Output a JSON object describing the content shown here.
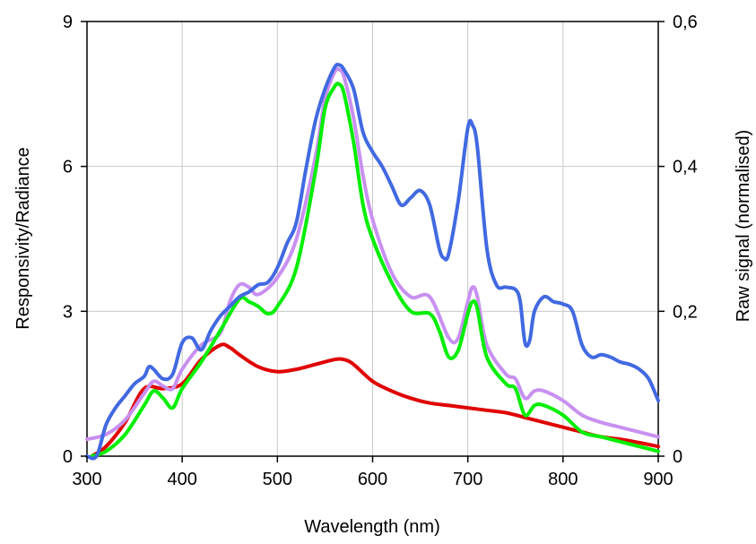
{
  "chart_data": {
    "type": "line",
    "title": "",
    "xlabel": "Wavelength (nm)",
    "ylabel": "Responsivity/Radiance",
    "y2label": "Raw signal (normalised)",
    "xlim": [
      300,
      900
    ],
    "ylim": [
      0,
      9
    ],
    "y2lim": [
      0,
      0.6
    ],
    "x_ticks": [
      300,
      400,
      500,
      600,
      700,
      800,
      900
    ],
    "x_tick_labels": [
      "300",
      "400",
      "500",
      "600",
      "700",
      "800",
      "900"
    ],
    "y_ticks": [
      0,
      3,
      6,
      9
    ],
    "y_tick_labels": [
      "0",
      "3",
      "6",
      "9"
    ],
    "y2_ticks": [
      0,
      0.2,
      0.4,
      0.6
    ],
    "y2_tick_labels": [
      "0",
      "0,2",
      "0,4",
      "0,6"
    ],
    "grid": true,
    "legend": "none",
    "series": [
      {
        "color": "#e00000",
        "x": [
          305,
          320,
          340,
          360,
          380,
          400,
          420,
          440,
          450,
          460,
          480,
          500,
          520,
          540,
          560,
          570,
          580,
          600,
          620,
          640,
          660,
          680,
          700,
          720,
          740,
          760,
          780,
          800,
          820,
          840,
          860,
          880,
          900
        ],
        "y": [
          0.0,
          0.2,
          0.7,
          1.4,
          1.4,
          1.5,
          2.0,
          2.3,
          2.25,
          2.1,
          1.85,
          1.75,
          1.8,
          1.9,
          2.0,
          2.0,
          1.9,
          1.55,
          1.35,
          1.2,
          1.1,
          1.05,
          1.0,
          0.95,
          0.9,
          0.8,
          0.7,
          0.6,
          0.5,
          0.4,
          0.35,
          0.28,
          0.2
        ]
      },
      {
        "color": "#c890f0",
        "x": [
          300,
          320,
          340,
          360,
          370,
          380,
          390,
          400,
          420,
          440,
          450,
          460,
          470,
          480,
          500,
          520,
          540,
          550,
          560,
          565,
          570,
          580,
          590,
          600,
          620,
          640,
          660,
          680,
          690,
          700,
          705,
          710,
          720,
          740,
          750,
          760,
          770,
          780,
          800,
          820,
          840,
          860,
          880,
          900
        ],
        "y": [
          0.35,
          0.45,
          0.75,
          1.3,
          1.55,
          1.45,
          1.4,
          1.8,
          2.3,
          2.55,
          3.2,
          3.55,
          3.5,
          3.35,
          3.7,
          4.5,
          6.2,
          7.4,
          7.95,
          8.0,
          7.85,
          7.0,
          5.8,
          4.9,
          3.8,
          3.3,
          3.3,
          2.45,
          2.45,
          3.2,
          3.5,
          3.3,
          2.3,
          1.7,
          1.6,
          1.2,
          1.35,
          1.35,
          1.15,
          0.85,
          0.7,
          0.6,
          0.5,
          0.4
        ]
      },
      {
        "color": "#00ee00",
        "x": [
          305,
          320,
          340,
          360,
          370,
          380,
          390,
          400,
          420,
          440,
          460,
          470,
          480,
          490,
          500,
          520,
          540,
          550,
          560,
          565,
          570,
          580,
          590,
          600,
          620,
          640,
          660,
          670,
          680,
          690,
          700,
          705,
          710,
          720,
          740,
          750,
          760,
          770,
          780,
          800,
          820,
          840,
          860,
          880,
          900
        ],
        "y": [
          0.0,
          0.1,
          0.45,
          1.05,
          1.35,
          1.2,
          1.0,
          1.4,
          1.95,
          2.6,
          3.25,
          3.2,
          3.1,
          2.95,
          3.1,
          3.9,
          5.9,
          7.2,
          7.65,
          7.7,
          7.5,
          6.5,
          5.2,
          4.5,
          3.6,
          3.0,
          2.95,
          2.6,
          2.05,
          2.2,
          2.95,
          3.2,
          3.05,
          2.05,
          1.5,
          1.4,
          0.85,
          1.05,
          1.05,
          0.85,
          0.5,
          0.4,
          0.3,
          0.2,
          0.1
        ]
      },
      {
        "color": "#4169e1",
        "x": [
          300,
          310,
          320,
          330,
          340,
          350,
          360,
          365,
          370,
          380,
          390,
          400,
          410,
          420,
          430,
          440,
          450,
          460,
          470,
          480,
          490,
          500,
          510,
          520,
          530,
          540,
          550,
          560,
          565,
          570,
          580,
          590,
          600,
          610,
          620,
          630,
          640,
          650,
          660,
          670,
          675,
          680,
          690,
          700,
          705,
          710,
          720,
          730,
          740,
          750,
          755,
          760,
          765,
          770,
          780,
          790,
          800,
          810,
          820,
          830,
          840,
          850,
          860,
          870,
          880,
          890,
          900
        ],
        "y": [
          0.0,
          0.0,
          0.65,
          1.0,
          1.25,
          1.5,
          1.65,
          1.85,
          1.8,
          1.6,
          1.7,
          2.35,
          2.45,
          2.2,
          2.6,
          2.9,
          3.1,
          3.3,
          3.4,
          3.55,
          3.6,
          3.9,
          4.4,
          4.85,
          5.95,
          6.95,
          7.6,
          8.05,
          8.1,
          8.0,
          7.6,
          6.7,
          6.3,
          6.0,
          5.6,
          5.2,
          5.35,
          5.5,
          5.2,
          4.3,
          4.1,
          4.2,
          5.3,
          6.8,
          6.85,
          6.4,
          4.3,
          3.55,
          3.5,
          3.45,
          3.2,
          2.35,
          2.4,
          3.0,
          3.3,
          3.2,
          3.15,
          3.0,
          2.3,
          2.05,
          2.1,
          2.05,
          1.95,
          1.9,
          1.8,
          1.6,
          1.15
        ]
      }
    ]
  }
}
